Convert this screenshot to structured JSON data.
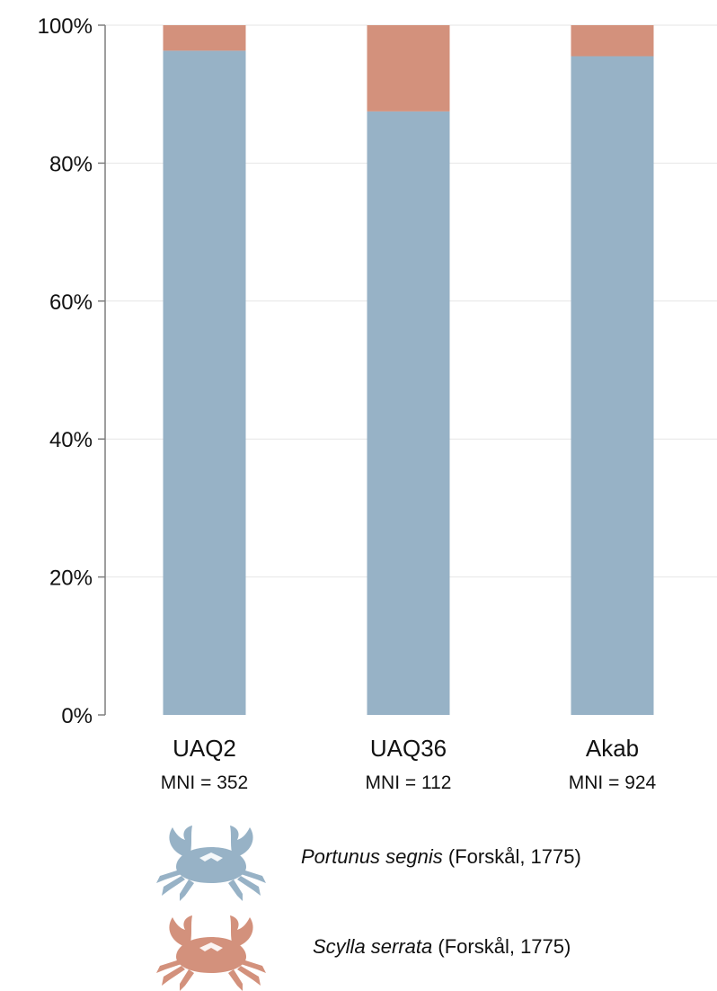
{
  "colors": {
    "portunus": "#97b2c6",
    "scylla": "#d3917c",
    "axis": "#7f7f7f",
    "grid": "#e6e6e6"
  },
  "chart_data": {
    "type": "bar",
    "stacked": true,
    "percent": true,
    "categories": [
      "UAQ2",
      "UAQ36",
      "Akab"
    ],
    "category_sublabels": [
      "MNI = 352",
      "MNI = 112",
      "MNI = 924"
    ],
    "ylim": [
      0,
      100
    ],
    "yticks": [
      "0%",
      "20%",
      "40%",
      "60%",
      "80%",
      "100%"
    ],
    "grid": true,
    "legend_position": "bottom",
    "series": [
      {
        "name_italic": "Portunus segnis",
        "name_rest": " (Forskål, 1775)",
        "color": "#97b2c6",
        "icon": "crab-icon",
        "values": [
          96.3,
          87.5,
          95.5
        ]
      },
      {
        "name_italic": "Scylla serrata",
        "name_rest": " (Forskål, 1775)",
        "color": "#d3917c",
        "icon": "crab-icon",
        "values": [
          3.7,
          12.5,
          4.5
        ]
      }
    ]
  }
}
